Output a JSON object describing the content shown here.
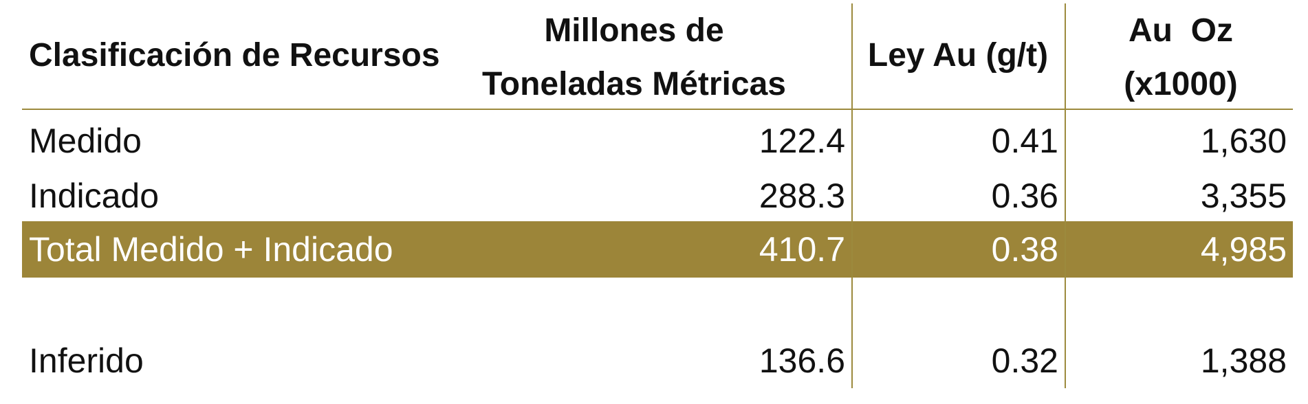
{
  "table": {
    "headers": {
      "col1": "Clasificación de Recursos",
      "col2_line1": "Millones de",
      "col2_line2": "Toneladas Métricas",
      "col3": "Ley Au (g/t)",
      "col4_line1": "Au  Oz",
      "col4_line2": "(x1000)"
    },
    "rows": [
      {
        "label": "Medido",
        "tonnes": "122.4",
        "grade": "0.41",
        "oz": "1,630"
      },
      {
        "label": "Indicado",
        "tonnes": "288.3",
        "grade": "0.36",
        "oz": "3,355"
      }
    ],
    "total": {
      "label": "Total Medido + Indicado",
      "tonnes": "410.7",
      "grade": "0.38",
      "oz": "4,985"
    },
    "inferred": {
      "label": "Inferido",
      "tonnes": "136.6",
      "grade": "0.32",
      "oz": "1,388"
    }
  },
  "colors": {
    "accent_line": "#9c8a3d",
    "total_fill": "#9c8539",
    "total_text": "#ffffff"
  }
}
